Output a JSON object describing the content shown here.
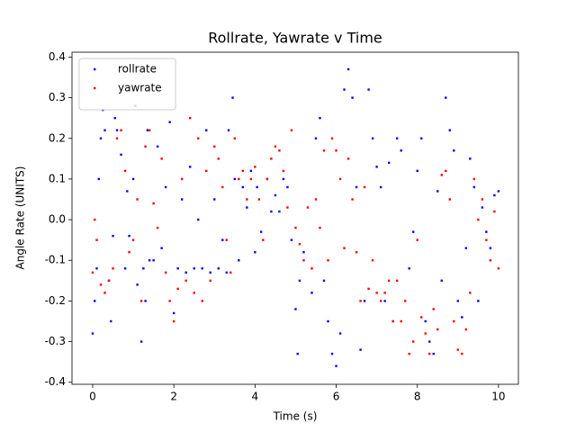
{
  "chart_data": {
    "type": "scatter",
    "title": "Rollrate, Yawrate v Time",
    "x_label": "Time (s)",
    "y_label": "Angle Rate (UNITS)",
    "xlim": [
      -0.51,
      10.49
    ],
    "ylim": [
      -0.405,
      0.412
    ],
    "xticks": [
      0,
      2,
      4,
      6,
      8,
      10
    ],
    "yticks": [
      -0.4,
      -0.3,
      -0.2,
      -0.1,
      {
        "value": 0,
        "label": "0.0"
      },
      0.1,
      0.2,
      0.3,
      0.4
    ],
    "legend": "upper left",
    "series": [
      {
        "name": "rollrate",
        "color": "#0000ff",
        "x": [
          0.0,
          0.05,
          0.1,
          0.15,
          0.2,
          0.25,
          0.3,
          0.4,
          0.45,
          0.5,
          0.55,
          0.6,
          0.7,
          0.8,
          0.85,
          0.9,
          1.0,
          1.05,
          1.1,
          1.2,
          1.25,
          1.3,
          1.35,
          1.4,
          1.5,
          1.6,
          1.7,
          1.8,
          1.9,
          2.0,
          2.1,
          2.2,
          2.3,
          2.4,
          2.5,
          2.6,
          2.7,
          2.8,
          2.9,
          3.0,
          3.1,
          3.2,
          3.3,
          3.35,
          3.45,
          3.5,
          3.6,
          3.7,
          3.8,
          3.9,
          4.0,
          4.05,
          4.15,
          4.3,
          4.4,
          4.5,
          4.6,
          4.7,
          4.8,
          4.9,
          5.0,
          5.05,
          5.1,
          5.2,
          5.4,
          5.5,
          5.6,
          5.7,
          5.8,
          5.9,
          6.0,
          6.1,
          6.2,
          6.3,
          6.4,
          6.5,
          6.6,
          6.7,
          6.8,
          6.9,
          7.0,
          7.1,
          7.2,
          7.3,
          7.4,
          7.5,
          7.6,
          7.8,
          7.9,
          8.0,
          8.1,
          8.2,
          8.3,
          8.4,
          8.5,
          8.6,
          8.7,
          8.8,
          8.9,
          9.0,
          9.1,
          9.2,
          9.3,
          9.4,
          9.5,
          9.6,
          9.7,
          9.8,
          9.9,
          10.0
        ],
        "values": [
          -0.28,
          -0.2,
          -0.12,
          0.1,
          0.2,
          0.27,
          0.22,
          -0.15,
          -0.25,
          -0.04,
          0.25,
          0.22,
          0.16,
          -0.12,
          0.07,
          -0.04,
          0.1,
          0.28,
          -0.16,
          -0.3,
          -0.12,
          -0.2,
          0.22,
          -0.1,
          -0.1,
          0.18,
          -0.07,
          0.08,
          0.24,
          -0.23,
          -0.12,
          0.05,
          -0.13,
          0.13,
          -0.12,
          0.0,
          -0.12,
          0.22,
          -0.13,
          0.05,
          -0.12,
          -0.05,
          -0.13,
          0.22,
          0.3,
          0.1,
          -0.1,
          0.08,
          0.03,
          0.12,
          -0.08,
          0.08,
          -0.03,
          0.1,
          0.02,
          0.06,
          0.02,
          0.1,
          0.08,
          -0.05,
          -0.22,
          -0.33,
          -0.15,
          -0.08,
          -0.18,
          0.2,
          0.25,
          -0.15,
          -0.25,
          -0.33,
          -0.36,
          -0.28,
          0.32,
          0.37,
          0.3,
          0.08,
          -0.32,
          -0.2,
          0.32,
          0.2,
          0.13,
          0.08,
          -0.2,
          0.14,
          -0.25,
          0.2,
          0.17,
          -0.12,
          -0.03,
          0.12,
          0.2,
          -0.25,
          -0.3,
          -0.33,
          0.07,
          -0.15,
          0.3,
          0.22,
          0.17,
          -0.2,
          -0.24,
          -0.07,
          0.15,
          0.08,
          -0.2,
          0.03,
          -0.03,
          -0.07,
          0.06,
          0.07
        ]
      },
      {
        "name": "yawrate",
        "color": "#ff0000",
        "x": [
          0.0,
          0.05,
          0.1,
          0.2,
          0.3,
          0.4,
          0.5,
          0.6,
          0.7,
          0.8,
          0.9,
          1.0,
          1.1,
          1.2,
          1.3,
          1.4,
          1.5,
          1.6,
          1.7,
          1.8,
          1.9,
          2.0,
          2.1,
          2.2,
          2.3,
          2.4,
          2.5,
          2.6,
          2.7,
          2.8,
          2.9,
          3.0,
          3.1,
          3.2,
          3.3,
          3.4,
          3.5,
          3.6,
          3.7,
          3.8,
          3.9,
          4.0,
          4.1,
          4.2,
          4.3,
          4.4,
          4.5,
          4.6,
          4.7,
          4.8,
          4.9,
          5.0,
          5.1,
          5.2,
          5.3,
          5.4,
          5.5,
          5.6,
          5.7,
          5.8,
          5.9,
          6.0,
          6.1,
          6.2,
          6.3,
          6.4,
          6.5,
          6.6,
          6.7,
          6.8,
          6.9,
          7.0,
          7.1,
          7.2,
          7.3,
          7.4,
          7.5,
          7.6,
          7.7,
          7.8,
          7.9,
          8.0,
          8.1,
          8.2,
          8.3,
          8.4,
          8.5,
          8.6,
          8.7,
          8.8,
          8.9,
          9.0,
          9.1,
          9.2,
          9.3,
          9.4,
          9.5,
          9.6,
          9.7,
          9.8,
          9.9,
          10.0
        ],
        "values": [
          -0.13,
          0.0,
          -0.05,
          -0.16,
          -0.18,
          -0.15,
          -0.12,
          0.2,
          0.22,
          0.12,
          -0.08,
          -0.05,
          0.05,
          -0.2,
          0.18,
          0.22,
          0.04,
          -0.02,
          0.15,
          -0.13,
          -0.2,
          -0.25,
          -0.17,
          0.1,
          -0.15,
          0.25,
          -0.18,
          0.2,
          -0.2,
          0.12,
          -0.15,
          0.18,
          0.15,
          0.08,
          -0.05,
          -0.13,
          0.2,
          0.1,
          0.12,
          0.05,
          0.1,
          0.13,
          0.05,
          -0.05,
          0.1,
          0.15,
          0.18,
          0.17,
          0.12,
          0.03,
          0.22,
          -0.02,
          -0.06,
          -0.1,
          0.03,
          -0.12,
          0.05,
          -0.02,
          0.17,
          -0.1,
          0.2,
          0.17,
          0.1,
          -0.07,
          0.15,
          0.05,
          -0.08,
          -0.2,
          0.08,
          -0.17,
          -0.1,
          -0.18,
          -0.2,
          -0.18,
          -0.15,
          -0.25,
          -0.15,
          -0.25,
          -0.2,
          -0.33,
          -0.3,
          -0.05,
          -0.24,
          -0.28,
          -0.33,
          -0.22,
          -0.27,
          0.11,
          0.12,
          0.05,
          -0.25,
          -0.32,
          -0.33,
          -0.27,
          -0.18,
          0.1,
          0.0,
          0.05,
          -0.05,
          -0.1,
          0.02,
          -0.12
        ]
      }
    ]
  }
}
